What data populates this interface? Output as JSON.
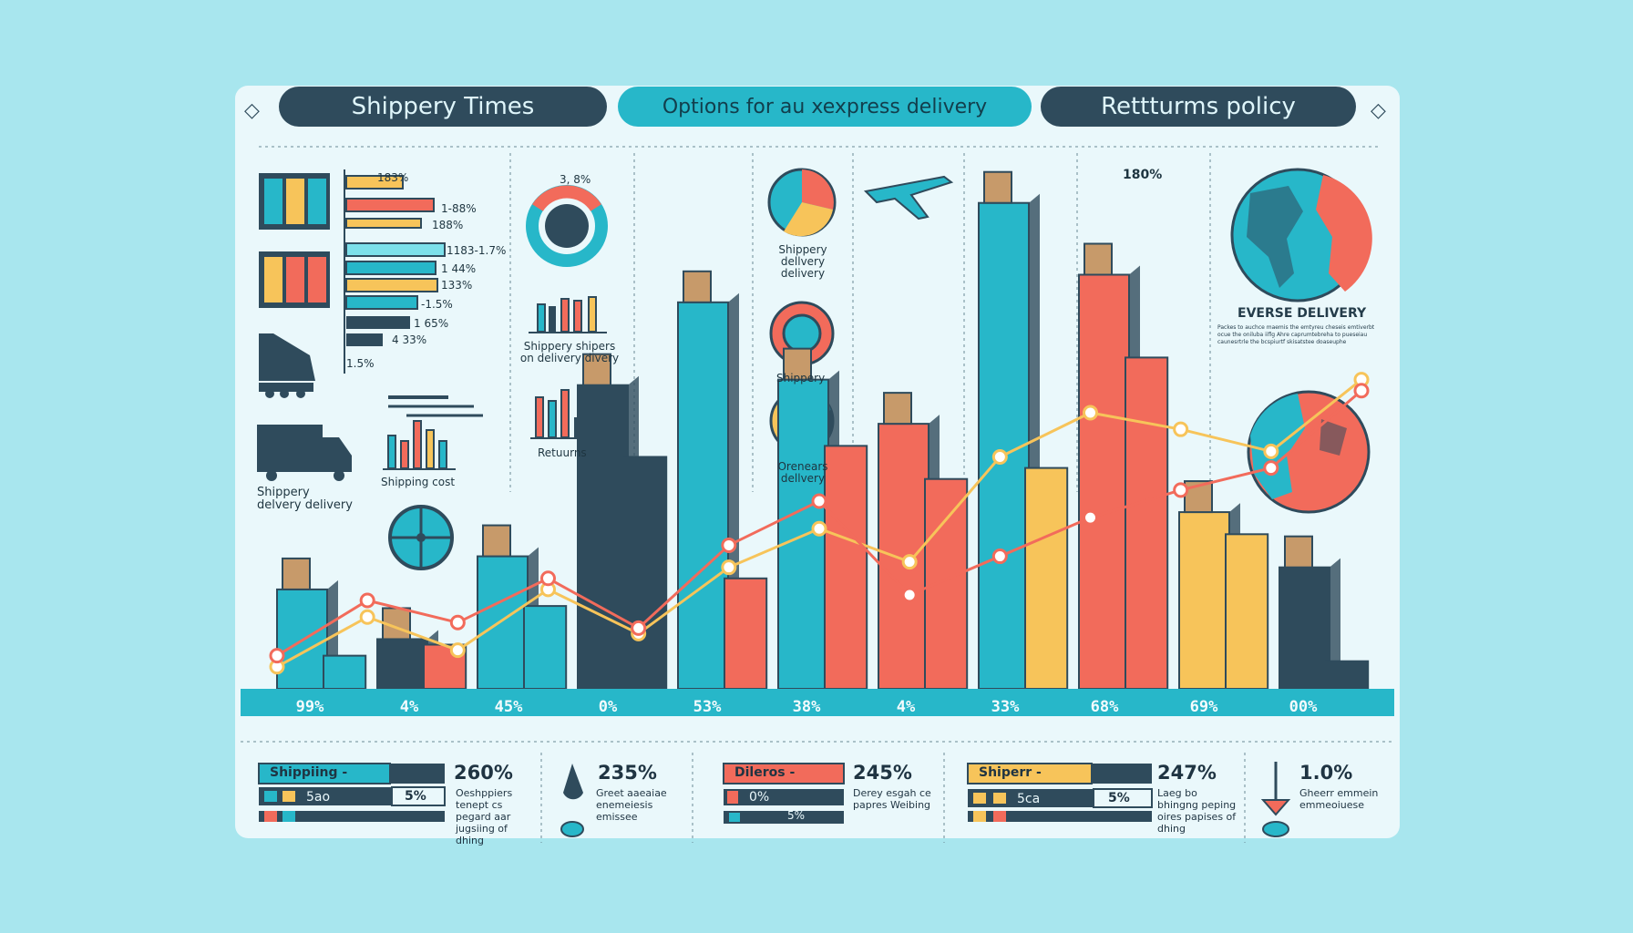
{
  "tabs": [
    {
      "label": "Shippery Times"
    },
    {
      "label": "Options for au xexpress delivery"
    },
    {
      "label": "Rettturms policy"
    }
  ],
  "colors": {
    "navy": "#2f4b5c",
    "teal": "#27b7c9",
    "red": "#f26b5b",
    "yellow": "#f7c45a",
    "background": "#a8e6ee"
  },
  "left_panel": {
    "hbar_labels": [
      "183%",
      "1-88%",
      "188%",
      "1183-1.7%",
      "1 44%",
      "133%",
      "-1.5%",
      "1 65%",
      "4 33%",
      "1.5%"
    ],
    "truck_label": "Shippery delvery delivery",
    "shipping_cost": "Shipping cost"
  },
  "icons_column": {
    "donut_label": "3, 8%",
    "shippery_shippers": "Shippery shipers on delivery divery",
    "returns_label": "Retuurns",
    "pie1_label": "Shippery dellvery delivery",
    "donut2_label": "Shippery",
    "pie3_label": "Orenears dellvery"
  },
  "right_panel": {
    "percent_label": "180%",
    "title": "EVERSE DELIVERY",
    "blurb": "Packes to auchce maemis the emtyreu cheseis emtiverbt ocue the oniluba iiflg Ahre caprumtebreha to pueseiau caunesrtrle the bcspiurtf skisatstee doaseuphe"
  },
  "chart_data": {
    "type": "bar",
    "categories": [
      "99%",
      "4%",
      "45%",
      "0%",
      "53%",
      "38%",
      "4%",
      "33%",
      "68%",
      "69%",
      "00%"
    ],
    "series": [
      {
        "values": [
          18,
          9,
          24,
          55,
          70,
          56,
          48,
          88,
          75,
          32,
          22
        ]
      },
      {
        "values": [
          6,
          8,
          15,
          42,
          20,
          44,
          38,
          40,
          60,
          28,
          5
        ]
      }
    ],
    "line_series": [
      {
        "values": [
          4,
          13,
          7,
          18,
          10,
          22,
          29,
          23,
          42,
          50,
          47,
          43,
          56
        ]
      },
      {
        "values": [
          6,
          16,
          12,
          20,
          11,
          26,
          34,
          17,
          24,
          31,
          36,
          40,
          54
        ]
      }
    ],
    "ylim": [
      0,
      100
    ]
  },
  "bottom": [
    {
      "badge": "Shippiing -",
      "v1": "5ao",
      "v2": "5%",
      "big": "260%",
      "small": "Oeshppiers tenept cs pegard aar jugsiing of dhing"
    },
    {
      "big": "235%",
      "small": "Greet aaeaiae enemeiesis emissee"
    },
    {
      "badge": "Dileros -",
      "v1": "0%",
      "v2": "5%",
      "big": "245%",
      "small": "Derey esgah ce papres Weibing"
    },
    {
      "badge": "Shiperr -",
      "v1": "5ca",
      "v2": "5%",
      "big": "247%",
      "small": "Laeg bo bhingng peping oires papises of dhing"
    },
    {
      "big": "1.0%",
      "small": "Gheerr emmein emmeoiuese"
    }
  ]
}
